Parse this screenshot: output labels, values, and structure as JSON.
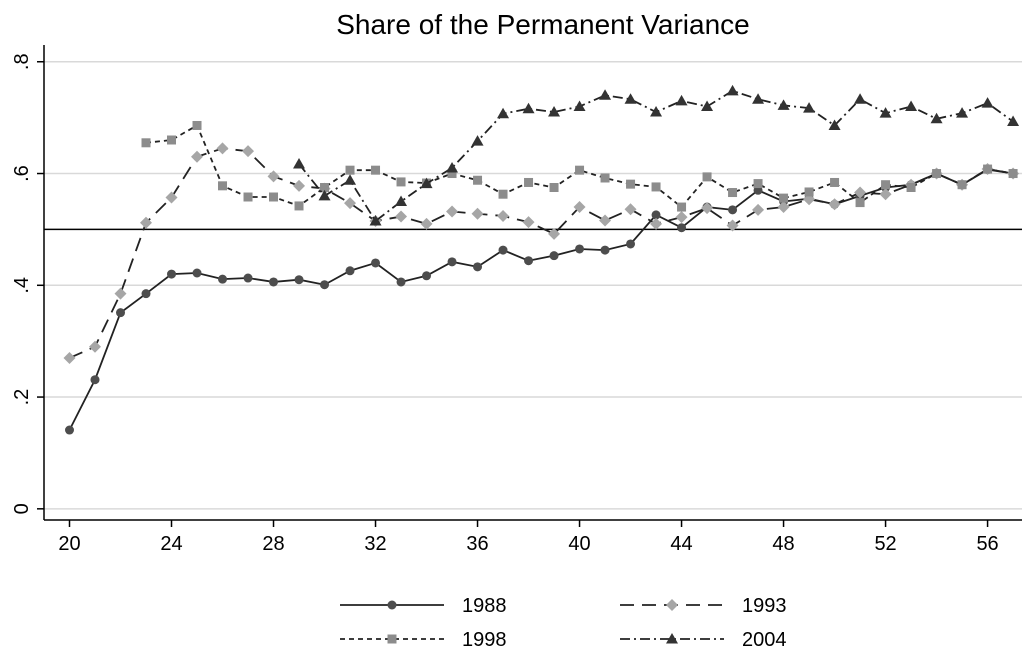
{
  "chart_data": {
    "type": "line",
    "title": "Share of the Permanent Variance",
    "xlim": [
      19,
      57.35
    ],
    "xticks": [
      20,
      24,
      28,
      32,
      36,
      40,
      44,
      48,
      52,
      56
    ],
    "ylim": [
      -0.02,
      0.83
    ],
    "yticks": [
      {
        "value": 0,
        "label": "0"
      },
      {
        "value": 0.2,
        "label": ".2"
      },
      {
        "value": 0.4,
        "label": ".4"
      },
      {
        "value": 0.6,
        "label": ".6"
      },
      {
        "value": 0.8,
        "label": ".8"
      }
    ],
    "grid": true,
    "hline": 0.5,
    "legend": "bottom",
    "series": [
      {
        "name": "1988",
        "color": "#4d4d4d",
        "marker": "circle",
        "dash": "solid",
        "x": [
          20,
          21,
          22,
          23,
          24,
          25,
          26,
          27,
          28,
          29,
          30,
          31,
          32,
          33,
          34,
          35,
          36,
          37,
          38,
          39,
          40,
          41,
          42,
          43,
          44,
          45,
          46,
          47,
          48,
          49,
          50,
          51,
          52,
          53,
          54,
          55,
          56,
          57
        ],
        "values": [
          0.141,
          0.231,
          0.351,
          0.385,
          0.42,
          0.422,
          0.411,
          0.413,
          0.406,
          0.41,
          0.401,
          0.426,
          0.44,
          0.406,
          0.417,
          0.442,
          0.433,
          0.463,
          0.444,
          0.453,
          0.465,
          0.463,
          0.474,
          0.526,
          0.503,
          0.54,
          0.535,
          0.57,
          0.55,
          0.555,
          0.545,
          0.56,
          0.575,
          0.58,
          0.6,
          0.58,
          0.607,
          0.6
        ]
      },
      {
        "name": "1993",
        "color": "#a6a6a6",
        "marker": "diamond",
        "dash": "longdash",
        "x": [
          20,
          21,
          22,
          23,
          24,
          25,
          26,
          27,
          28,
          29,
          30,
          31,
          32,
          33,
          34,
          35,
          36,
          37,
          38,
          39,
          40,
          41,
          42,
          43,
          44,
          45,
          46,
          47,
          48,
          49,
          50,
          51,
          52,
          53,
          54,
          55,
          56,
          57
        ],
        "values": [
          0.27,
          0.29,
          0.385,
          0.512,
          0.557,
          0.63,
          0.645,
          0.64,
          0.595,
          0.578,
          0.573,
          0.547,
          0.515,
          0.523,
          0.51,
          0.532,
          0.528,
          0.524,
          0.513,
          0.492,
          0.54,
          0.516,
          0.536,
          0.51,
          0.522,
          0.538,
          0.507,
          0.535,
          0.54,
          0.554,
          0.545,
          0.566,
          0.563,
          0.58,
          0.6,
          0.58,
          0.608,
          0.6
        ]
      },
      {
        "name": "1998",
        "color": "#8c8c8c",
        "marker": "square",
        "dash": "shortdash",
        "x": [
          23,
          24,
          25,
          26,
          27,
          28,
          29,
          30,
          31,
          32,
          33,
          34,
          35,
          36,
          37,
          38,
          39,
          40,
          41,
          42,
          43,
          44,
          45,
          46,
          47,
          48,
          49,
          50,
          51,
          52,
          53,
          54,
          55,
          56,
          57
        ],
        "values": [
          0.655,
          0.66,
          0.686,
          0.578,
          0.558,
          0.558,
          0.542,
          0.575,
          0.606,
          0.606,
          0.585,
          0.583,
          0.6,
          0.588,
          0.563,
          0.584,
          0.575,
          0.606,
          0.592,
          0.581,
          0.576,
          0.54,
          0.594,
          0.566,
          0.582,
          0.556,
          0.567,
          0.584,
          0.548,
          0.58,
          0.575,
          0.6,
          0.58,
          0.608,
          0.6
        ]
      },
      {
        "name": "2004",
        "color": "#333333",
        "marker": "triangle",
        "dash": "dashdot",
        "x": [
          29,
          30,
          31,
          32,
          33,
          34,
          35,
          36,
          37,
          38,
          39,
          40,
          41,
          42,
          43,
          44,
          45,
          46,
          47,
          48,
          49,
          50,
          51,
          52,
          53,
          54,
          55,
          56,
          57
        ],
        "values": [
          0.617,
          0.56,
          0.588,
          0.515,
          0.55,
          0.582,
          0.61,
          0.658,
          0.707,
          0.716,
          0.71,
          0.72,
          0.74,
          0.733,
          0.71,
          0.73,
          0.72,
          0.748,
          0.733,
          0.722,
          0.717,
          0.686,
          0.733,
          0.708,
          0.72,
          0.698,
          0.708,
          0.726,
          0.693
        ]
      }
    ]
  }
}
